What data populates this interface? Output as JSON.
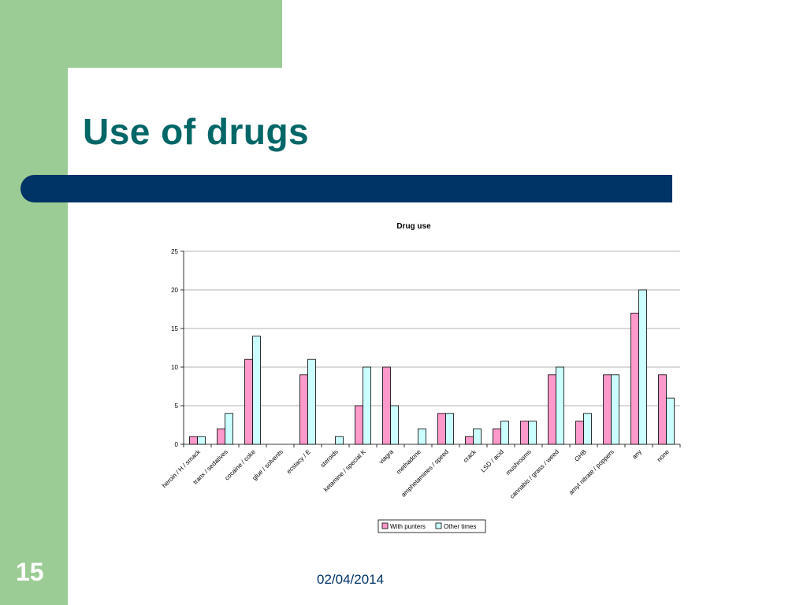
{
  "slide": {
    "title": "Use of drugs",
    "number": "15",
    "date": "02/04/2014"
  },
  "colors": {
    "sidebar_green": "#9ccc95",
    "title_teal": "#006666",
    "bar_navy": "#003366",
    "series_with_punters": "#ff99cc",
    "series_other_times": "#ccffff"
  },
  "chart_data": {
    "type": "bar",
    "title": "Drug use",
    "xlabel": "",
    "ylabel": "",
    "ylim": [
      0,
      25
    ],
    "yticks": [
      0,
      5,
      10,
      15,
      20,
      25
    ],
    "grid": true,
    "legend_position": "bottom",
    "categories": [
      "heroin / H / smack",
      "tranx / sedatives",
      "cocaine / coke",
      "glue / solvents",
      "ecstacy / E",
      "steroids",
      "ketamine / special K",
      "viagra",
      "methadone",
      "amphetamines / speed",
      "crack",
      "LSD / acid",
      "mushrooms",
      "cannabis / grass / weed",
      "GHB",
      "amyl nitrate / poppers",
      "any",
      "none"
    ],
    "series": [
      {
        "name": "With punters",
        "values": [
          1,
          2,
          11,
          0,
          9,
          0,
          5,
          10,
          0,
          4,
          1,
          2,
          3,
          9,
          3,
          9,
          17,
          9
        ]
      },
      {
        "name": "Other times",
        "values": [
          1,
          4,
          14,
          0,
          11,
          1,
          10,
          5,
          2,
          4,
          2,
          3,
          3,
          10,
          4,
          9,
          20,
          6
        ]
      }
    ]
  }
}
